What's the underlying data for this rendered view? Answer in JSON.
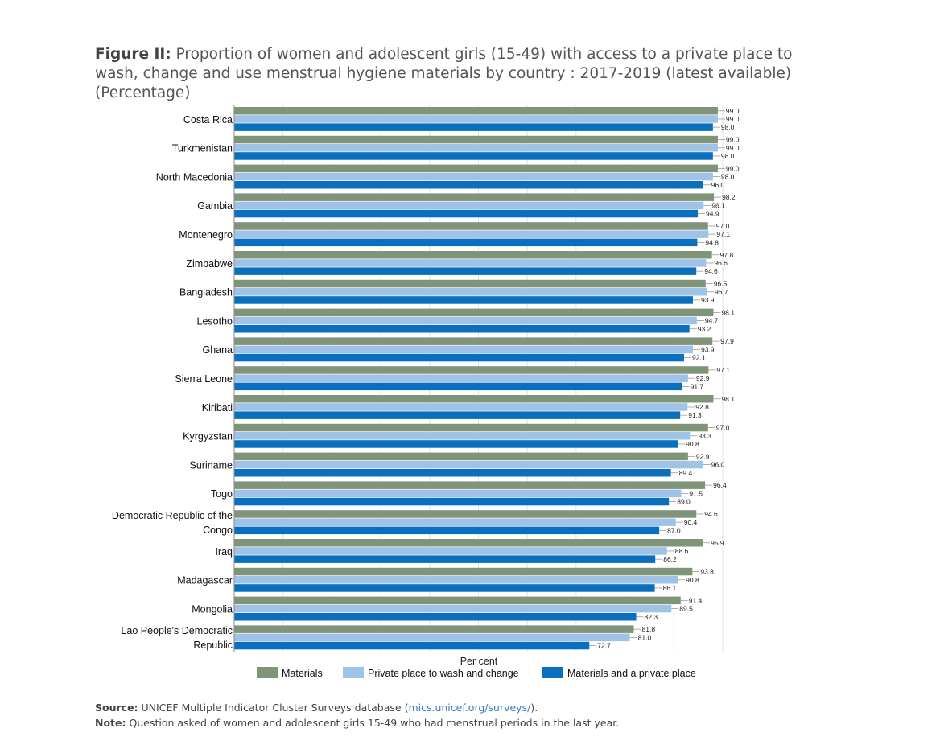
{
  "header": {
    "label": "Figure II:",
    "text": "Proportion of women and adolescent girls (15-49) with access to a private place to wash, change and use menstrual hygiene materials by country : 2017-2019 (latest available) (Percentage)"
  },
  "footer": {
    "source_label": "Source:",
    "source_text_before": "UNICEF Multiple Indicator Cluster Surveys database (",
    "source_link": "mics.unicef.org/surveys/",
    "source_text_after": ").",
    "note_label": "Note:",
    "note_text": "Question asked of women and adolescent girls 15-49 who had menstrual periods in the last year."
  },
  "colors": {
    "materials": "#7f9479",
    "private_place": "#9fc3e7",
    "both": "#0b6fbf"
  },
  "chart_data": {
    "type": "bar",
    "orientation": "horizontal",
    "xlabel": "Per cent",
    "xlim": [
      0,
      100
    ],
    "grid": true,
    "legend": "bottom",
    "categories": [
      [
        "Costa Rica"
      ],
      [
        "Turkmenistan"
      ],
      [
        "North Macedonia"
      ],
      [
        "Gambia"
      ],
      [
        "Montenegro"
      ],
      [
        "Zimbabwe"
      ],
      [
        "Bangladesh"
      ],
      [
        "Lesotho"
      ],
      [
        "Ghana"
      ],
      [
        "Sierra Leone"
      ],
      [
        "Kiribati"
      ],
      [
        "Kyrgyzstan"
      ],
      [
        "Suriname"
      ],
      [
        "Togo"
      ],
      [
        "Democratic Republic of the",
        "Congo"
      ],
      [
        "Iraq"
      ],
      [
        "Madagascar"
      ],
      [
        "Mongolia"
      ],
      [
        "Lao People's Democratic",
        "Republic"
      ]
    ],
    "series": [
      {
        "name": "Materials",
        "color": "#7f9479",
        "values": [
          99.0,
          99.0,
          99.0,
          98.2,
          97.0,
          97.8,
          96.5,
          98.1,
          97.9,
          97.1,
          98.1,
          97.0,
          92.9,
          96.4,
          94.6,
          95.9,
          93.8,
          91.4,
          81.8
        ]
      },
      {
        "name": "Private place to wash and change",
        "color": "#9fc3e7",
        "values": [
          99.0,
          99.0,
          98.0,
          96.1,
          97.1,
          96.6,
          96.7,
          94.7,
          93.9,
          92.9,
          92.8,
          93.3,
          96.0,
          91.5,
          90.4,
          88.6,
          90.8,
          89.5,
          81.0
        ]
      },
      {
        "name": "Materials and a private place",
        "color": "#0b6fbf",
        "values": [
          98.0,
          98.0,
          96.0,
          94.9,
          94.8,
          94.6,
          93.9,
          93.2,
          92.1,
          91.7,
          91.3,
          90.8,
          89.4,
          89.0,
          87.0,
          86.2,
          86.1,
          82.3,
          72.7
        ]
      }
    ]
  }
}
